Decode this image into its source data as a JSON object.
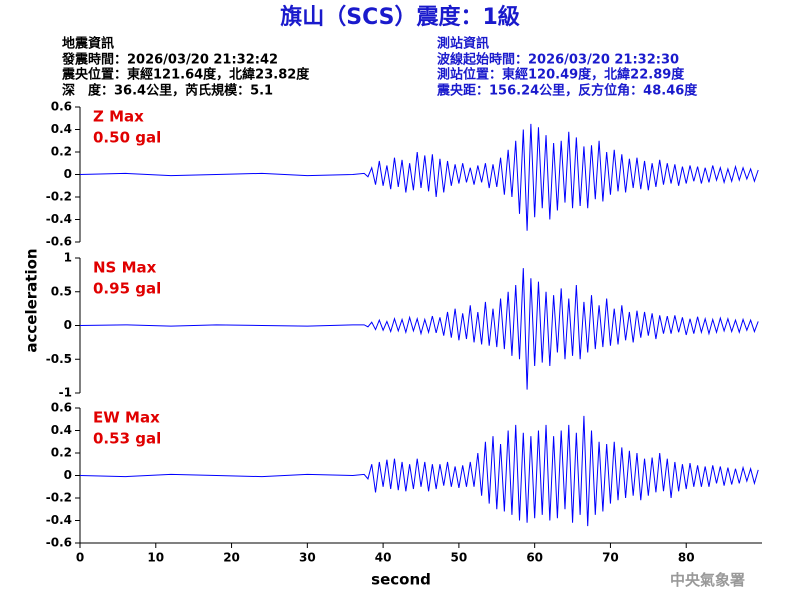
{
  "header": {
    "title": "旗山（SCS）震度：1級",
    "left": [
      "地震資訊",
      "發震時間：2026/03/20 21:32:42",
      "震央位置：東經121.64度，北緯23.82度",
      "深　度：36.4公里，芮氏規模：5.1"
    ],
    "right": [
      "測站資訊",
      "波線起始時間：2026/03/20 21:32:30",
      "測站位置：東經120.49度，北緯22.89度",
      "震央距：156.24公里，反方位角：48.46度"
    ]
  },
  "footer": "中央氣象署",
  "chart_data": [
    {
      "type": "line",
      "annotations": [
        "Z Max",
        "0.50 gal"
      ],
      "x": [
        0,
        6,
        12,
        18,
        24,
        30,
        36,
        37.5,
        38,
        38.5,
        39,
        39.5,
        40,
        40.5,
        41,
        41.5,
        42,
        42.5,
        43,
        43.5,
        44,
        44.5,
        45,
        45.5,
        46,
        46.5,
        47,
        47.5,
        48,
        48.5,
        49,
        49.5,
        50,
        50.5,
        51,
        51.5,
        52,
        52.5,
        53,
        53.5,
        54,
        54.5,
        55,
        55.5,
        56,
        56.5,
        57,
        57.5,
        58,
        58.5,
        59,
        59.5,
        60,
        60.5,
        61,
        61.5,
        62,
        62.5,
        63,
        63.5,
        64,
        64.5,
        65,
        65.5,
        66,
        66.5,
        67,
        67.5,
        68,
        68.5,
        69,
        69.5,
        70,
        70.5,
        71,
        71.5,
        72,
        72.5,
        73,
        73.5,
        74,
        74.5,
        75,
        75.5,
        76,
        76.5,
        77,
        77.5,
        78,
        78.5,
        79,
        79.5,
        80,
        80.5,
        81,
        81.5,
        82,
        82.5,
        83,
        83.5,
        84,
        84.5,
        85,
        85.5,
        86,
        86.5,
        87,
        87.5,
        88,
        88.5,
        89,
        89.5
      ],
      "series": [
        {
          "color": "#0000ff",
          "values": [
            0,
            0.01,
            -0.01,
            0,
            0.01,
            -0.01,
            0,
            0.01,
            -0.02,
            0.06,
            -0.09,
            0.12,
            -0.1,
            0.08,
            -0.13,
            0.15,
            -0.11,
            0.13,
            -0.16,
            0.1,
            -0.14,
            0.2,
            -0.12,
            0.17,
            -0.15,
            0.18,
            -0.2,
            0.14,
            -0.16,
            0.12,
            -0.1,
            0.09,
            -0.08,
            0.1,
            -0.07,
            0.06,
            -0.09,
            0.08,
            -0.07,
            0.1,
            -0.12,
            0.09,
            -0.11,
            0.15,
            -0.18,
            0.22,
            -0.2,
            0.3,
            -0.35,
            0.4,
            -0.5,
            0.45,
            -0.38,
            0.42,
            -0.3,
            0.35,
            -0.4,
            0.28,
            -0.32,
            0.3,
            -0.25,
            0.38,
            -0.3,
            0.33,
            -0.28,
            0.25,
            -0.3,
            0.26,
            -0.22,
            0.3,
            -0.24,
            0.2,
            -0.18,
            0.22,
            -0.15,
            0.18,
            -0.16,
            0.14,
            -0.12,
            0.15,
            -0.13,
            0.12,
            -0.14,
            0.1,
            -0.11,
            0.13,
            -0.09,
            0.1,
            -0.08,
            0.09,
            -0.1,
            0.07,
            -0.08,
            0.08,
            -0.06,
            0.07,
            -0.08,
            0.06,
            -0.07,
            0.08,
            -0.05,
            0.06,
            -0.07,
            0.05,
            -0.06,
            0.07,
            -0.05,
            0.06,
            -0.04,
            0.05,
            -0.06,
            0.04
          ]
        }
      ],
      "xlim": [
        0,
        90
      ],
      "ylim": [
        -0.6,
        0.6
      ],
      "yticks": [
        0.6,
        0.4,
        0.2,
        0,
        -0.2,
        -0.4,
        -0.6
      ]
    },
    {
      "type": "line",
      "annotations": [
        "NS Max",
        "0.95 gal"
      ],
      "ylabel": "acceleration",
      "x": [
        0,
        6,
        12,
        18,
        24,
        30,
        36,
        37.5,
        38,
        38.5,
        39,
        39.5,
        40,
        40.5,
        41,
        41.5,
        42,
        42.5,
        43,
        43.5,
        44,
        44.5,
        45,
        45.5,
        46,
        46.5,
        47,
        47.5,
        48,
        48.5,
        49,
        49.5,
        50,
        50.5,
        51,
        51.5,
        52,
        52.5,
        53,
        53.5,
        54,
        54.5,
        55,
        55.5,
        56,
        56.5,
        57,
        57.5,
        58,
        58.5,
        59,
        59.5,
        60,
        60.5,
        61,
        61.5,
        62,
        62.5,
        63,
        63.5,
        64,
        64.5,
        65,
        65.5,
        66,
        66.5,
        67,
        67.5,
        68,
        68.5,
        69,
        69.5,
        70,
        70.5,
        71,
        71.5,
        72,
        72.5,
        73,
        73.5,
        74,
        74.5,
        75,
        75.5,
        76,
        76.5,
        77,
        77.5,
        78,
        78.5,
        79,
        79.5,
        80,
        80.5,
        81,
        81.5,
        82,
        82.5,
        83,
        83.5,
        84,
        84.5,
        85,
        85.5,
        86,
        86.5,
        87,
        87.5,
        88,
        88.5,
        89,
        89.5
      ],
      "series": [
        {
          "color": "#0000ff",
          "values": [
            0,
            0.01,
            -0.01,
            0.01,
            0,
            -0.01,
            0.01,
            0.01,
            -0.02,
            0.05,
            -0.06,
            0.08,
            -0.07,
            0.06,
            -0.09,
            0.1,
            -0.08,
            0.09,
            -0.1,
            0.12,
            -0.08,
            0.1,
            -0.12,
            0.09,
            -0.1,
            0.14,
            -0.11,
            0.12,
            -0.15,
            0.2,
            -0.18,
            0.25,
            -0.22,
            0.18,
            -0.2,
            0.3,
            -0.25,
            0.2,
            -0.28,
            0.35,
            -0.3,
            0.25,
            -0.32,
            0.4,
            -0.35,
            0.5,
            -0.45,
            0.6,
            -0.5,
            0.85,
            -0.95,
            0.7,
            -0.6,
            0.65,
            -0.55,
            0.5,
            -0.6,
            0.45,
            -0.4,
            0.55,
            -0.5,
            0.4,
            -0.45,
            0.6,
            -0.5,
            0.35,
            -0.4,
            0.45,
            -0.35,
            0.3,
            -0.32,
            0.4,
            -0.3,
            0.25,
            -0.28,
            0.3,
            -0.22,
            0.2,
            -0.25,
            0.22,
            -0.18,
            0.2,
            -0.15,
            0.18,
            -0.2,
            0.15,
            -0.12,
            0.14,
            -0.12,
            0.15,
            -0.1,
            0.12,
            -0.14,
            0.1,
            -0.12,
            0.13,
            -0.1,
            0.1,
            -0.12,
            0.09,
            -0.1,
            0.11,
            -0.08,
            0.1,
            -0.09,
            0.08,
            -0.1,
            0.09,
            -0.07,
            0.08,
            -0.09,
            0.06
          ]
        }
      ],
      "xlim": [
        0,
        90
      ],
      "ylim": [
        -1,
        1
      ],
      "yticks": [
        1,
        0.5,
        0,
        -0.5,
        -1
      ]
    },
    {
      "type": "line",
      "annotations": [
        "EW Max",
        "0.53 gal"
      ],
      "xlabel": "second",
      "x": [
        0,
        6,
        12,
        18,
        24,
        30,
        36,
        37.5,
        38,
        38.5,
        39,
        39.5,
        40,
        40.5,
        41,
        41.5,
        42,
        42.5,
        43,
        43.5,
        44,
        44.5,
        45,
        45.5,
        46,
        46.5,
        47,
        47.5,
        48,
        48.5,
        49,
        49.5,
        50,
        50.5,
        51,
        51.5,
        52,
        52.5,
        53,
        53.5,
        54,
        54.5,
        55,
        55.5,
        56,
        56.5,
        57,
        57.5,
        58,
        58.5,
        59,
        59.5,
        60,
        60.5,
        61,
        61.5,
        62,
        62.5,
        63,
        63.5,
        64,
        64.5,
        65,
        65.5,
        66,
        66.5,
        67,
        67.5,
        68,
        68.5,
        69,
        69.5,
        70,
        70.5,
        71,
        71.5,
        72,
        72.5,
        73,
        73.5,
        74,
        74.5,
        75,
        75.5,
        76,
        76.5,
        77,
        77.5,
        78,
        78.5,
        79,
        79.5,
        80,
        80.5,
        81,
        81.5,
        82,
        82.5,
        83,
        83.5,
        84,
        84.5,
        85,
        85.5,
        86,
        86.5,
        87,
        87.5,
        88,
        88.5,
        89,
        89.5
      ],
      "series": [
        {
          "color": "#0000ff",
          "values": [
            0,
            -0.01,
            0.01,
            0,
            -0.01,
            0.01,
            0,
            0.01,
            -0.03,
            0.1,
            -0.15,
            0.12,
            -0.1,
            0.14,
            -0.12,
            0.15,
            -0.13,
            0.12,
            -0.14,
            0.1,
            -0.12,
            0.15,
            -0.1,
            0.12,
            -0.14,
            0.1,
            -0.12,
            0.1,
            -0.09,
            0.12,
            -0.1,
            0.08,
            -0.11,
            0.09,
            -0.1,
            0.12,
            -0.1,
            0.2,
            -0.18,
            0.3,
            -0.25,
            0.35,
            -0.3,
            0.28,
            -0.32,
            0.4,
            -0.35,
            0.45,
            -0.4,
            0.38,
            -0.42,
            0.35,
            -0.38,
            0.4,
            -0.35,
            0.45,
            -0.4,
            0.35,
            -0.38,
            0.4,
            -0.3,
            0.45,
            -0.42,
            0.38,
            -0.35,
            0.53,
            -0.45,
            0.4,
            -0.35,
            0.3,
            -0.32,
            0.28,
            -0.25,
            0.3,
            -0.22,
            0.25,
            -0.2,
            0.22,
            -0.18,
            0.2,
            -0.22,
            0.15,
            -0.18,
            0.16,
            -0.15,
            0.2,
            -0.14,
            0.15,
            -0.2,
            0.12,
            -0.14,
            0.1,
            -0.12,
            0.11,
            -0.1,
            0.09,
            -0.1,
            0.08,
            -0.1,
            0.09,
            -0.07,
            0.08,
            -0.09,
            0.07,
            -0.08,
            0.06,
            -0.07,
            0.07,
            -0.05,
            0.06,
            -0.07,
            0.05
          ]
        }
      ],
      "xlim": [
        0,
        90
      ],
      "xticks": [
        0,
        10,
        20,
        30,
        40,
        50,
        60,
        70,
        80
      ],
      "ylim": [
        -0.6,
        0.6
      ],
      "yticks": [
        0.6,
        0.4,
        0.2,
        0,
        -0.2,
        -0.4,
        -0.6
      ]
    }
  ]
}
